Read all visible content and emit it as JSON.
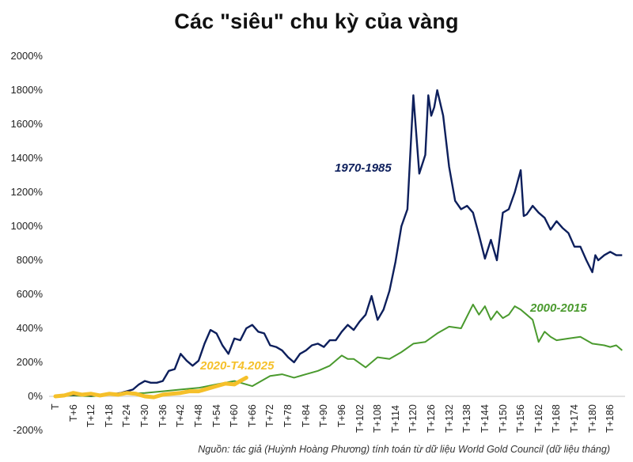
{
  "title": "Các \"siêu\" chu kỳ của vàng",
  "source": "Nguồn: tác giả (Huỳnh Hoàng Phương) tính toán từ dữ liệu World Gold Council (dữ liệu tháng)",
  "colors": {
    "series_1970": "#0d1f5c",
    "series_2000": "#4a9a2e",
    "series_2020": "#f5c02a",
    "zero_line": "#d9d9d9"
  },
  "labels": {
    "s1970": "1970-1985",
    "s2000": "2000-2015",
    "s2020": "2020-T4.2025"
  },
  "y_ticks": [
    "2000%",
    "1800%",
    "1600%",
    "1400%",
    "1200%",
    "1000%",
    "800%",
    "600%",
    "400%",
    "200%",
    "0%",
    "-200%"
  ],
  "x_ticks": [
    "T",
    "T+6",
    "T+12",
    "T+18",
    "T+24",
    "T+30",
    "T+36",
    "T+42",
    "T+48",
    "T+54",
    "T+60",
    "T+66",
    "T+72",
    "T+78",
    "T+84",
    "T+90",
    "T+96",
    "T+102",
    "T+108",
    "T+114",
    "T+120",
    "T+126",
    "T+132",
    "T+138",
    "T+144",
    "T+150",
    "T+156",
    "T+162",
    "T+168",
    "T+174",
    "T+180",
    "T+186"
  ],
  "chart_data": {
    "type": "line",
    "title": "Các \"siêu\" chu kỳ của vàng",
    "xlabel": "",
    "ylabel": "",
    "ylim": [
      -200,
      2000
    ],
    "y_unit": "%",
    "grid": false,
    "legend": "inline labels",
    "x_ticks": [
      "T",
      "T+6",
      "T+12",
      "T+18",
      "T+24",
      "T+30",
      "T+36",
      "T+42",
      "T+48",
      "T+54",
      "T+60",
      "T+66",
      "T+72",
      "T+78",
      "T+84",
      "T+90",
      "T+96",
      "T+102",
      "T+108",
      "T+114",
      "T+120",
      "T+126",
      "T+132",
      "T+138",
      "T+144",
      "T+150",
      "T+156",
      "T+162",
      "T+168",
      "T+174",
      "T+180",
      "T+186"
    ],
    "series": [
      {
        "name": "1970-1985",
        "x": [
          0,
          6,
          12,
          18,
          22,
          26,
          28,
          30,
          32,
          34,
          36,
          38,
          40,
          42,
          44,
          46,
          48,
          50,
          52,
          54,
          56,
          58,
          60,
          62,
          64,
          66,
          68,
          70,
          72,
          74,
          76,
          78,
          80,
          82,
          84,
          86,
          88,
          90,
          92,
          94,
          96,
          98,
          100,
          102,
          104,
          106,
          108,
          110,
          112,
          114,
          116,
          118,
          120,
          122,
          124,
          125,
          126,
          127,
          128,
          130,
          132,
          133,
          134,
          136,
          138,
          140,
          142,
          144,
          146,
          148,
          150,
          152,
          154,
          156,
          157,
          158,
          160,
          162,
          164,
          166,
          168,
          170,
          172,
          174,
          176,
          178,
          180,
          181,
          182,
          184,
          186,
          188,
          190
        ],
        "values": [
          0,
          10,
          5,
          10,
          20,
          40,
          70,
          90,
          80,
          80,
          90,
          150,
          160,
          250,
          210,
          180,
          210,
          310,
          390,
          370,
          300,
          250,
          340,
          330,
          400,
          420,
          380,
          370,
          300,
          290,
          270,
          230,
          200,
          250,
          270,
          300,
          310,
          290,
          330,
          330,
          380,
          420,
          390,
          440,
          480,
          590,
          450,
          510,
          620,
          790,
          1000,
          1100,
          1770,
          1310,
          1420,
          1770,
          1650,
          1700,
          1800,
          1650,
          1350,
          1250,
          1150,
          1100,
          1120,
          1080,
          950,
          810,
          920,
          800,
          1080,
          1100,
          1200,
          1330,
          1060,
          1070,
          1120,
          1080,
          1050,
          980,
          1030,
          990,
          960,
          880,
          880,
          800,
          730,
          830,
          800,
          830,
          850,
          830,
          830
        ]
      },
      {
        "name": "2000-2015",
        "x": [
          0,
          6,
          12,
          18,
          24,
          30,
          36,
          42,
          48,
          54,
          60,
          66,
          70,
          72,
          76,
          80,
          84,
          88,
          92,
          96,
          98,
          100,
          104,
          108,
          112,
          116,
          120,
          124,
          128,
          132,
          136,
          140,
          142,
          144,
          146,
          148,
          150,
          152,
          154,
          156,
          158,
          160,
          162,
          164,
          166,
          168,
          172,
          176,
          180,
          184,
          186,
          188,
          190
        ],
        "values": [
          0,
          5,
          0,
          10,
          15,
          20,
          30,
          40,
          50,
          70,
          90,
          60,
          100,
          120,
          130,
          110,
          130,
          150,
          180,
          240,
          220,
          220,
          170,
          230,
          220,
          260,
          310,
          320,
          370,
          410,
          400,
          540,
          480,
          530,
          450,
          500,
          460,
          480,
          530,
          510,
          480,
          450,
          320,
          380,
          350,
          330,
          340,
          350,
          310,
          300,
          290,
          300,
          270
        ]
      },
      {
        "name": "2020-T4.2025",
        "x": [
          0,
          3,
          6,
          9,
          12,
          15,
          18,
          21,
          24,
          27,
          30,
          33,
          36,
          39,
          42,
          45,
          48,
          51,
          54,
          57,
          60,
          62,
          64
        ],
        "values": [
          0,
          5,
          20,
          10,
          15,
          5,
          15,
          10,
          20,
          15,
          0,
          -5,
          10,
          15,
          20,
          30,
          30,
          45,
          60,
          75,
          70,
          90,
          110
        ]
      }
    ]
  }
}
